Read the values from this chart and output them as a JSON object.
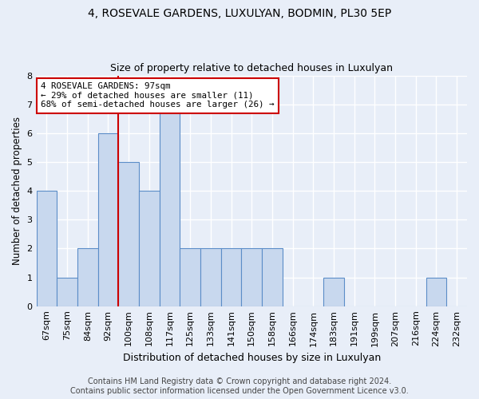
{
  "title": "4, ROSEVALE GARDENS, LUXULYAN, BODMIN, PL30 5EP",
  "subtitle": "Size of property relative to detached houses in Luxulyan",
  "xlabel": "Distribution of detached houses by size in Luxulyan",
  "ylabel": "Number of detached properties",
  "categories": [
    "67sqm",
    "75sqm",
    "84sqm",
    "92sqm",
    "100sqm",
    "108sqm",
    "117sqm",
    "125sqm",
    "133sqm",
    "141sqm",
    "150sqm",
    "158sqm",
    "166sqm",
    "174sqm",
    "183sqm",
    "191sqm",
    "199sqm",
    "207sqm",
    "216sqm",
    "224sqm",
    "232sqm"
  ],
  "values": [
    4,
    1,
    2,
    6,
    5,
    4,
    7,
    2,
    2,
    2,
    2,
    2,
    0,
    0,
    1,
    0,
    0,
    0,
    0,
    1,
    0
  ],
  "bar_color": "#c8d8ee",
  "bar_edge_color": "#5b8dc8",
  "property_line_color": "#cc0000",
  "annotation_text": "4 ROSEVALE GARDENS: 97sqm\n← 29% of detached houses are smaller (11)\n68% of semi-detached houses are larger (26) →",
  "annotation_box_color": "#ffffff",
  "annotation_box_edge": "#cc0000",
  "ylim": [
    0,
    8
  ],
  "yticks": [
    0,
    1,
    2,
    3,
    4,
    5,
    6,
    7,
    8
  ],
  "footer": "Contains HM Land Registry data © Crown copyright and database right 2024.\nContains public sector information licensed under the Open Government Licence v3.0.",
  "background_color": "#e8eef8",
  "plot_background": "#e8eef8",
  "grid_color": "#ffffff",
  "title_fontsize": 10,
  "subtitle_fontsize": 9,
  "xlabel_fontsize": 9,
  "ylabel_fontsize": 8.5,
  "tick_fontsize": 8,
  "footer_fontsize": 7
}
